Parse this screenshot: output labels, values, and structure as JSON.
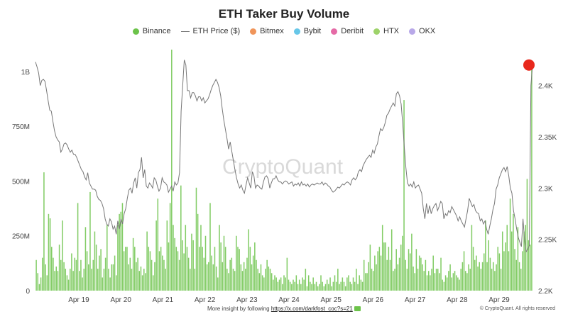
{
  "header": {
    "title": "ETH Taker Buy Volume"
  },
  "legend": [
    {
      "label": "Binance",
      "color": "#6cc34a",
      "kind": "dot"
    },
    {
      "label": "ETH Price ($)",
      "color": "#777777",
      "kind": "line"
    },
    {
      "label": "Bitmex",
      "color": "#f0955a",
      "kind": "dot"
    },
    {
      "label": "Bybit",
      "color": "#67c7e8",
      "kind": "dot"
    },
    {
      "label": "Deribit",
      "color": "#e56aa6",
      "kind": "dot"
    },
    {
      "label": "HTX",
      "color": "#9ed36a",
      "kind": "dot"
    },
    {
      "label": "OKX",
      "color": "#b8a8e8",
      "kind": "dot"
    }
  ],
  "footer": {
    "text": "More insight by following",
    "link": "https://x.com/darkfost_coc?s=21",
    "copyright": "© CryptoQuant. All rights reserved"
  },
  "watermark": "CryptoQuant",
  "chart_data": {
    "type": "bar",
    "title": "ETH Taker Buy Volume",
    "x_tick_labels": [
      "Apr 19",
      "Apr 20",
      "Apr 21",
      "Apr 22",
      "Apr 23",
      "Apr 24",
      "Apr 25",
      "Apr 26",
      "Apr 27",
      "Apr 28",
      "Apr 29"
    ],
    "y_left": {
      "ticks": [
        "0",
        "250M",
        "500M",
        "750M",
        "1B"
      ],
      "ylim": [
        0,
        1100000000
      ]
    },
    "y_right": {
      "ticks": [
        "2.2K",
        "2.25K",
        "2.3K",
        "2.35K",
        "2.4K"
      ],
      "ylim": [
        2200,
        2435
      ]
    },
    "grid": false,
    "legend_position": "top",
    "series": [
      {
        "name": "Binance",
        "color": "#6cc34a",
        "type": "bar",
        "unit": "USD",
        "values": [
          140000000,
          80000000,
          30000000,
          60000000,
          150000000,
          540000000,
          120000000,
          70000000,
          350000000,
          330000000,
          200000000,
          150000000,
          90000000,
          110000000,
          90000000,
          210000000,
          140000000,
          320000000,
          130000000,
          100000000,
          70000000,
          50000000,
          100000000,
          170000000,
          90000000,
          150000000,
          140000000,
          400000000,
          90000000,
          140000000,
          60000000,
          100000000,
          290000000,
          180000000,
          120000000,
          450000000,
          100000000,
          140000000,
          270000000,
          210000000,
          100000000,
          160000000,
          190000000,
          60000000,
          100000000,
          150000000,
          300000000,
          100000000,
          60000000,
          120000000,
          120000000,
          160000000,
          70000000,
          300000000,
          350000000,
          360000000,
          400000000,
          180000000,
          200000000,
          200000000,
          120000000,
          150000000,
          100000000,
          240000000,
          200000000,
          130000000,
          150000000,
          90000000,
          110000000,
          70000000,
          100000000,
          80000000,
          270000000,
          200000000,
          180000000,
          140000000,
          70000000,
          130000000,
          320000000,
          420000000,
          180000000,
          200000000,
          160000000,
          140000000,
          100000000,
          320000000,
          220000000,
          400000000,
          1100000000,
          300000000,
          240000000,
          200000000,
          180000000,
          140000000,
          480000000,
          230000000,
          170000000,
          300000000,
          200000000,
          150000000,
          100000000,
          260000000,
          230000000,
          100000000,
          470000000,
          350000000,
          200000000,
          300000000,
          200000000,
          150000000,
          250000000,
          120000000,
          130000000,
          400000000,
          160000000,
          120000000,
          200000000,
          110000000,
          60000000,
          300000000,
          220000000,
          130000000,
          250000000,
          200000000,
          100000000,
          80000000,
          140000000,
          150000000,
          100000000,
          90000000,
          250000000,
          200000000,
          190000000,
          120000000,
          90000000,
          130000000,
          100000000,
          150000000,
          280000000,
          200000000,
          120000000,
          160000000,
          220000000,
          140000000,
          100000000,
          80000000,
          120000000,
          70000000,
          60000000,
          100000000,
          140000000,
          110000000,
          100000000,
          80000000,
          50000000,
          70000000,
          60000000,
          40000000,
          50000000,
          60000000,
          30000000,
          70000000,
          60000000,
          150000000,
          50000000,
          40000000,
          30000000,
          50000000,
          40000000,
          70000000,
          30000000,
          50000000,
          30000000,
          60000000,
          50000000,
          100000000,
          20000000,
          70000000,
          40000000,
          30000000,
          60000000,
          30000000,
          40000000,
          20000000,
          30000000,
          70000000,
          40000000,
          20000000,
          30000000,
          50000000,
          30000000,
          60000000,
          20000000,
          40000000,
          70000000,
          40000000,
          100000000,
          30000000,
          40000000,
          60000000,
          40000000,
          20000000,
          60000000,
          70000000,
          40000000,
          30000000,
          60000000,
          40000000,
          100000000,
          30000000,
          70000000,
          50000000,
          40000000,
          140000000,
          80000000,
          80000000,
          130000000,
          210000000,
          100000000,
          90000000,
          160000000,
          120000000,
          180000000,
          200000000,
          160000000,
          300000000,
          220000000,
          220000000,
          140000000,
          200000000,
          140000000,
          280000000,
          90000000,
          100000000,
          190000000,
          120000000,
          150000000,
          210000000,
          250000000,
          870000000,
          140000000,
          100000000,
          190000000,
          170000000,
          260000000,
          110000000,
          80000000,
          190000000,
          100000000,
          160000000,
          150000000,
          120000000,
          90000000,
          140000000,
          70000000,
          90000000,
          70000000,
          100000000,
          160000000,
          80000000,
          100000000,
          100000000,
          80000000,
          150000000,
          50000000,
          40000000,
          70000000,
          60000000,
          90000000,
          120000000,
          60000000,
          80000000,
          90000000,
          70000000,
          60000000,
          50000000,
          100000000,
          130000000,
          180000000,
          90000000,
          80000000,
          120000000,
          100000000,
          300000000,
          200000000,
          140000000,
          160000000,
          110000000,
          130000000,
          100000000,
          130000000,
          170000000,
          320000000,
          130000000,
          230000000,
          150000000,
          100000000,
          130000000,
          90000000,
          120000000,
          200000000,
          170000000,
          100000000,
          270000000,
          180000000,
          220000000,
          300000000,
          180000000,
          420000000,
          270000000,
          350000000,
          190000000,
          140000000,
          290000000,
          130000000,
          100000000,
          180000000,
          270000000,
          300000000,
          510000000,
          230000000,
          210000000,
          1050000000
        ]
      },
      {
        "name": "ETH Price ($)",
        "color": "#777777",
        "type": "line",
        "unit": "USD",
        "values": [
          2423,
          2418,
          2412,
          2400,
          2405,
          2406,
          2404,
          2395,
          2385,
          2376,
          2375,
          2365,
          2356,
          2350,
          2347,
          2345,
          2335,
          2338,
          2343,
          2344,
          2342,
          2338,
          2335,
          2337,
          2333,
          2333,
          2330,
          2326,
          2322,
          2318,
          2316,
          2311,
          2308,
          2315,
          2305,
          2302,
          2299,
          2299,
          2298,
          2292,
          2289,
          2288,
          2285,
          2280,
          2270,
          2265,
          2263,
          2270,
          2267,
          2260,
          2263,
          2255,
          2268,
          2260,
          2270,
          2265,
          2275,
          2280,
          2290,
          2298,
          2300,
          2295,
          2305,
          2310,
          2300,
          2315,
          2318,
          2330,
          2310,
          2318,
          2302,
          2300,
          2305,
          2303,
          2300,
          2310,
          2308,
          2302,
          2297,
          2300,
          2310,
          2306,
          2305,
          2303,
          2296,
          2299,
          2302,
          2297,
          2306,
          2303,
          2305,
          2315,
          2375,
          2400,
          2425,
          2420,
          2395,
          2395,
          2388,
          2393,
          2393,
          2390,
          2385,
          2389,
          2389,
          2385,
          2388,
          2383,
          2385,
          2387,
          2391,
          2396,
          2400,
          2403,
          2406,
          2403,
          2398,
          2390,
          2377,
          2366,
          2357,
          2348,
          2338,
          2345,
          2336,
          2327,
          2318,
          2310,
          2304,
          2300,
          2303,
          2298,
          2295,
          2303,
          2310,
          2305,
          2300,
          2316,
          2312,
          2300,
          2303,
          2302,
          2300,
          2299,
          2306,
          2311,
          2312,
          2309,
          2300,
          2305,
          2309,
          2309,
          2312,
          2308,
          2306,
          2306,
          2304,
          2306,
          2307,
          2306,
          2304,
          2305,
          2306,
          2302,
          2304,
          2303,
          2305,
          2302,
          2306,
          2303,
          2304,
          2302,
          2304,
          2301,
          2303,
          2304,
          2303,
          2304,
          2305,
          2304,
          2304,
          2306,
          2303,
          2305,
          2304,
          2302,
          2301,
          2298,
          2296,
          2297,
          2299,
          2301,
          2300,
          2302,
          2304,
          2303,
          2305,
          2306,
          2305,
          2303,
          2308,
          2310,
          2308,
          2310,
          2316,
          2318,
          2316,
          2322,
          2325,
          2328,
          2330,
          2332,
          2330,
          2337,
          2334,
          2340,
          2343,
          2351,
          2358,
          2356,
          2359,
          2364,
          2371,
          2373,
          2377,
          2380,
          2383,
          2380,
          2392,
          2394,
          2390,
          2382,
          2363,
          2340,
          2320,
          2305,
          2302,
          2304,
          2301,
          2306,
          2300,
          2302,
          2303,
          2299,
          2295,
          2280,
          2270,
          2285,
          2275,
          2283,
          2275,
          2280,
          2283,
          2285,
          2278,
          2282,
          2287,
          2285,
          2270,
          2275,
          2273,
          2278,
          2276,
          2282,
          2279,
          2276,
          2273,
          2268,
          2272,
          2268,
          2265,
          2262,
          2270,
          2278,
          2290,
          2286,
          2282,
          2284,
          2278,
          2276,
          2275,
          2268,
          2270,
          2265,
          2268,
          2260,
          2255,
          2263,
          2270,
          2279,
          2285,
          2299,
          2303,
          2310,
          2314,
          2318,
          2320,
          2316,
          2321,
          2312,
          2300,
          2295,
          2278,
          2270,
          2260,
          2252,
          2247,
          2243,
          2270,
          2249,
          2238,
          2240,
          2244,
          2400,
          2420
        ]
      },
      {
        "name": "Bitmex",
        "color": "#f0955a",
        "type": "bar",
        "values": []
      },
      {
        "name": "Bybit",
        "color": "#67c7e8",
        "type": "bar",
        "values": []
      },
      {
        "name": "Deribit",
        "color": "#e56aa6",
        "type": "bar",
        "values": []
      },
      {
        "name": "HTX",
        "color": "#9ed36a",
        "type": "bar",
        "values": []
      },
      {
        "name": "OKX",
        "color": "#b8a8e8",
        "type": "bar",
        "values": []
      }
    ],
    "latest_point": {
      "series": "ETH Price ($)",
      "value": 2420,
      "color": "#e8281c"
    }
  }
}
